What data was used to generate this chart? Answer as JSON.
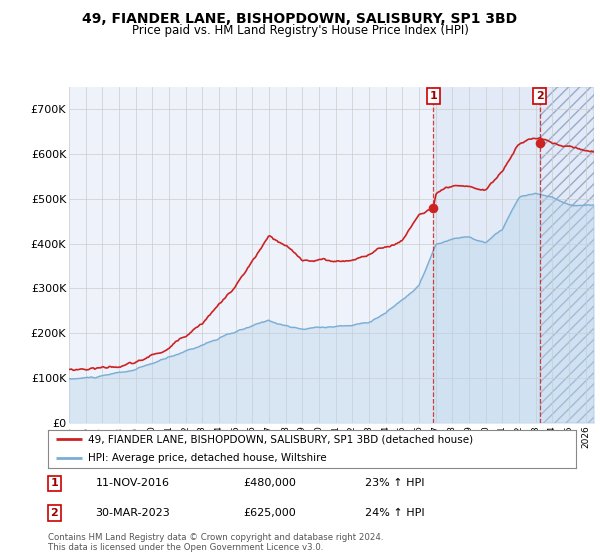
{
  "title": "49, FIANDER LANE, BISHOPDOWN, SALISBURY, SP1 3BD",
  "subtitle": "Price paid vs. HM Land Registry's House Price Index (HPI)",
  "ylim": [
    0,
    750000
  ],
  "xlim_start": 1995.0,
  "xlim_end": 2026.5,
  "yticks": [
    0,
    100000,
    200000,
    300000,
    400000,
    500000,
    600000,
    700000
  ],
  "ytick_labels": [
    "£0",
    "£100K",
    "£200K",
    "£300K",
    "£400K",
    "£500K",
    "£600K",
    "£700K"
  ],
  "xticks": [
    1995,
    1996,
    1997,
    1998,
    1999,
    2000,
    2001,
    2002,
    2003,
    2004,
    2005,
    2006,
    2007,
    2008,
    2009,
    2010,
    2011,
    2012,
    2013,
    2014,
    2015,
    2016,
    2017,
    2018,
    2019,
    2020,
    2021,
    2022,
    2023,
    2024,
    2025,
    2026
  ],
  "sale1_date": 2016.87,
  "sale1_price": 480000,
  "sale1_label": "1",
  "sale1_display": "11-NOV-2016",
  "sale1_price_str": "£480,000",
  "sale1_pct": "23% ↑ HPI",
  "sale2_date": 2023.25,
  "sale2_price": 625000,
  "sale2_label": "2",
  "sale2_display": "30-MAR-2023",
  "sale2_price_str": "£625,000",
  "sale2_pct": "24% ↑ HPI",
  "hpi_color": "#7aadd4",
  "price_color": "#cc2222",
  "bg_color": "#eef2fb",
  "shade_color": "#dce8f5",
  "grid_color": "#cccccc",
  "legend1": "49, FIANDER LANE, BISHOPDOWN, SALISBURY, SP1 3BD (detached house)",
  "legend2": "HPI: Average price, detached house, Wiltshire",
  "footer1": "Contains HM Land Registry data © Crown copyright and database right 2024.",
  "footer2": "This data is licensed under the Open Government Licence v3.0."
}
